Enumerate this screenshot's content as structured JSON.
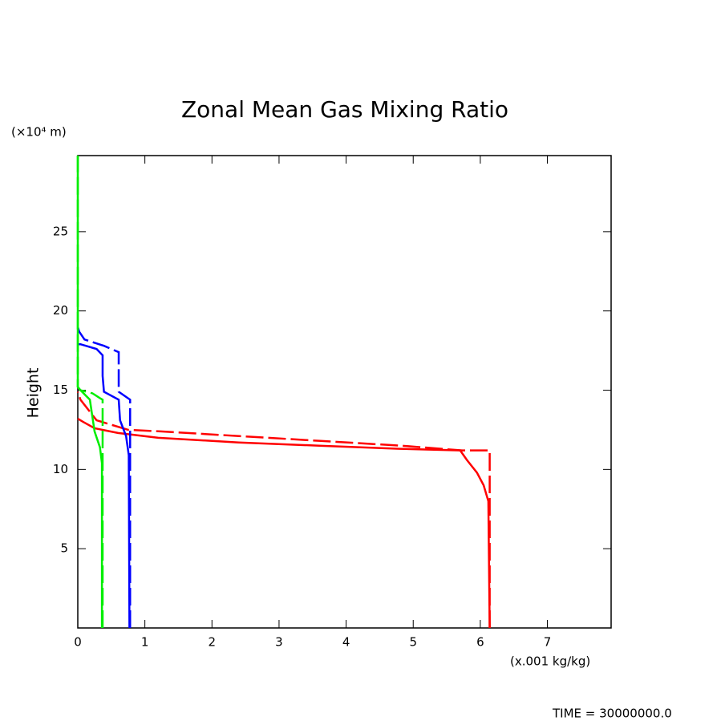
{
  "chart_data": {
    "type": "line",
    "title": "Zonal Mean Gas Mixing Ratio",
    "y_unit": "(×10⁴ m)",
    "ylabel": "Height",
    "x_unit": "(x.001 kg/kg)",
    "footer": "TIME = 30000000.0",
    "xlim": [
      0,
      7.95
    ],
    "ylim": [
      0,
      29.8
    ],
    "xticks": [
      0,
      1,
      2,
      3,
      4,
      5,
      6,
      7
    ],
    "yticks": [
      5,
      10,
      15,
      20,
      25
    ],
    "series": [
      {
        "color": "#ff0000",
        "dashed": false,
        "x": [
          6.14,
          6.12,
          6.05,
          5.95,
          5.8,
          5.7,
          4.8,
          3.6,
          2.4,
          1.2,
          0.6,
          0.25,
          0.08,
          0
        ],
        "values": [
          0,
          8.0,
          9.0,
          9.8,
          10.6,
          11.2,
          11.3,
          11.5,
          11.7,
          12.0,
          12.3,
          12.6,
          13.0,
          13.2
        ]
      },
      {
        "color": "#ff0000",
        "dashed": true,
        "x": [
          6.14,
          6.14,
          5.73,
          4.82,
          3.62,
          2.43,
          1.23,
          0.75,
          0.28,
          0.04,
          0
        ],
        "values": [
          0,
          11.2,
          11.2,
          11.5,
          11.8,
          12.1,
          12.4,
          12.5,
          13.1,
          14.4,
          14.9
        ]
      },
      {
        "color": "#0000ff",
        "dashed": false,
        "x": [
          0.77,
          0.76,
          0.72,
          0.63,
          0.61,
          0.39,
          0.37,
          0.37,
          0.28,
          0.04,
          0
        ],
        "values": [
          0,
          10.9,
          12.1,
          13.1,
          14.4,
          14.9,
          15.9,
          17.2,
          17.6,
          17.9,
          17.9
        ]
      },
      {
        "color": "#0000ff",
        "dashed": true,
        "x": [
          0.78,
          0.78,
          0.61,
          0.61,
          0.39,
          0.1,
          0.02,
          0
        ],
        "values": [
          0,
          14.4,
          14.9,
          17.4,
          17.8,
          18.2,
          18.7,
          19.0
        ]
      },
      {
        "color": "#00ee00",
        "dashed": false,
        "x": [
          0.36,
          0.36,
          0.33,
          0.25,
          0.18,
          0.04,
          0,
          0
        ],
        "values": [
          0,
          10.4,
          11.4,
          12.4,
          14.4,
          15.0,
          15.2,
          29.8
        ]
      },
      {
        "color": "#00ee00",
        "dashed": true,
        "x": [
          0.37,
          0.37,
          0.33,
          0.22,
          0.04,
          0,
          0
        ],
        "values": [
          0,
          14.4,
          14.5,
          14.8,
          15.0,
          15.2,
          29.8
        ]
      }
    ]
  }
}
